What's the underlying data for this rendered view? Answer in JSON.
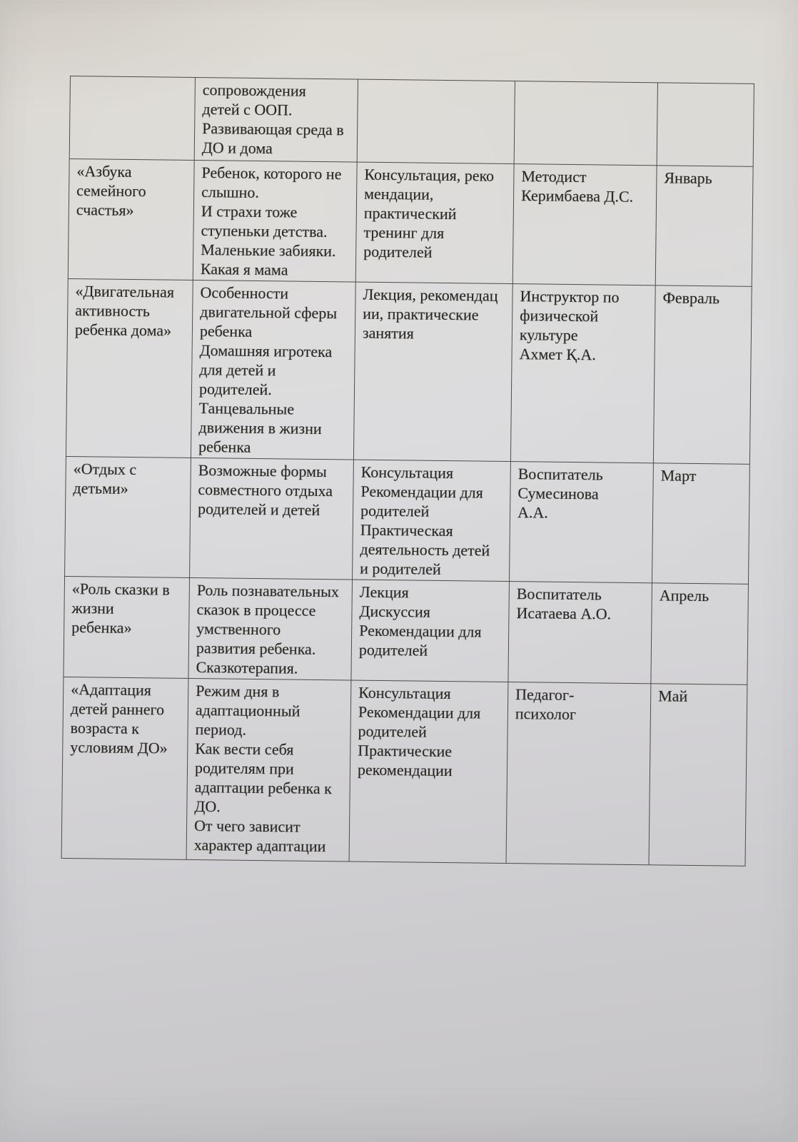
{
  "table": {
    "rows": [
      {
        "theme": "",
        "content": "сопровождения\nдетей с ООП.\nРазвивающая среда в\nДО и дома",
        "form": "",
        "responsible": "",
        "month": ""
      },
      {
        "theme": "«Азбука\nсемейного\nсчастья»",
        "content": "Ребенок, которого не\nслышно.\nИ страхи тоже\nступеньки детства.\nМаленькие забияки.\nКакая я мама",
        "form": "Консультация, реко\nмендации,\nпрактический\nтренинг для\nродителей",
        "responsible": "Методист\nКеримбаева Д.С.",
        "month": "Январь"
      },
      {
        "theme": "«Двигательная\nактивность\nребенка дома»",
        "content": "Особенности\nдвигательной сферы\nребенка\nДомашняя игротека\nдля детей и\nродителей.\nТанцевальные\nдвижения в жизни\nребенка",
        "form": "Лекция, рекомендац\nии, практические\nзанятия",
        "responsible": "Инструктор по\nфизической\nкультуре\nАхмет Қ.А.",
        "month": "Февраль"
      },
      {
        "theme": "«Отдых с\nдетьми»",
        "content": "Возможные формы\nсовместного отдыха\nродителей и детей",
        "form": "Консультация\nРекомендации для\nродителей\nПрактическая\nдеятельность детей\nи родителей",
        "responsible": "Воспитатель\nСумесинова\nА.А.",
        "month": "Март"
      },
      {
        "theme": "«Роль сказки в\nжизни\nребенка»",
        "content": "Роль познавательных\nсказок в процессе\nумственного\nразвития ребенка.\nСказкотерапия.",
        "form": "Лекция\nДискуссия\nРекомендации для\nродителей",
        "responsible": "Воспитатель\nИсатаева А.О.",
        "month": "Апрель"
      },
      {
        "theme": "«Адаптация\nдетей раннего\nвозраста к\nусловиям ДО»",
        "content": "Режим дня в\nадаптационный\nпериод.\nКак вести себя\nродителям при\nадаптации ребенка к\nДО.\nОт чего зависит\nхарактер адаптации",
        "form": "Консультация\nРекомендации для\nродителей\nПрактические\nрекомендации",
        "responsible": "Педагог-\nпсихолог",
        "month": "Май"
      }
    ]
  }
}
